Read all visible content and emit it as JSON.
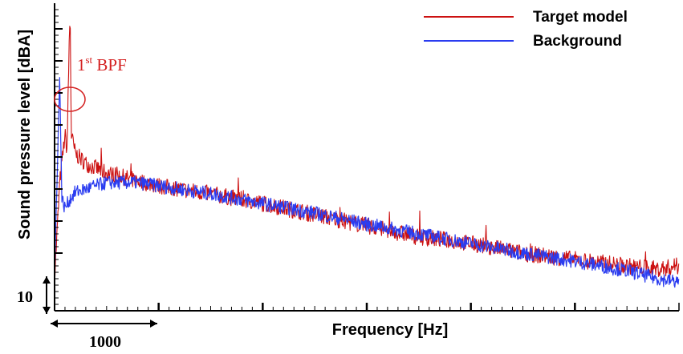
{
  "chart_data": {
    "type": "line",
    "title": "",
    "xlabel": "Frequency [Hz]",
    "ylabel": "Sound pressure level [dBA]",
    "xlim": [
      0,
      6000
    ],
    "x_tick_interval": 500,
    "x_major_tick_interval": 1000,
    "y_tick_interval": 10,
    "grid": false,
    "legend_position": "top-right",
    "scale_bar_x_label": "1000",
    "scale_bar_y_label": "10",
    "annotation": {
      "text": "1",
      "superscript": "st",
      "suffix": " BPF",
      "color": "#d42020",
      "x": 150
    },
    "series": [
      {
        "name": "Target model",
        "color": "#cc1111",
        "x": [
          0,
          50,
          100,
          120,
          140,
          150,
          160,
          200,
          300,
          500,
          800,
          1000,
          1500,
          2000,
          2500,
          3000,
          3500,
          3800,
          4000,
          4500,
          5000,
          5500,
          5800,
          6000
        ],
        "y": [
          -25,
          5,
          20,
          15,
          48,
          58,
          20,
          14,
          11,
          8,
          5.5,
          4,
          1.5,
          -1.5,
          -5,
          -8.5,
          -12,
          -13,
          -14,
          -17,
          -19,
          -21,
          -22,
          -21
        ]
      },
      {
        "name": "Background",
        "color": "#2a3cf0",
        "x": [
          0,
          30,
          50,
          70,
          100,
          150,
          200,
          300,
          500,
          800,
          1000,
          1500,
          2000,
          2500,
          3000,
          3500,
          4000,
          4500,
          5000,
          5500,
          5800,
          6000
        ],
        "y": [
          -25,
          15,
          38,
          0,
          -3,
          0,
          2,
          3,
          5,
          5,
          4,
          1.5,
          -1.5,
          -4.5,
          -8,
          -11,
          -14,
          -17,
          -19.5,
          -22.5,
          -25,
          -26
        ]
      }
    ]
  }
}
